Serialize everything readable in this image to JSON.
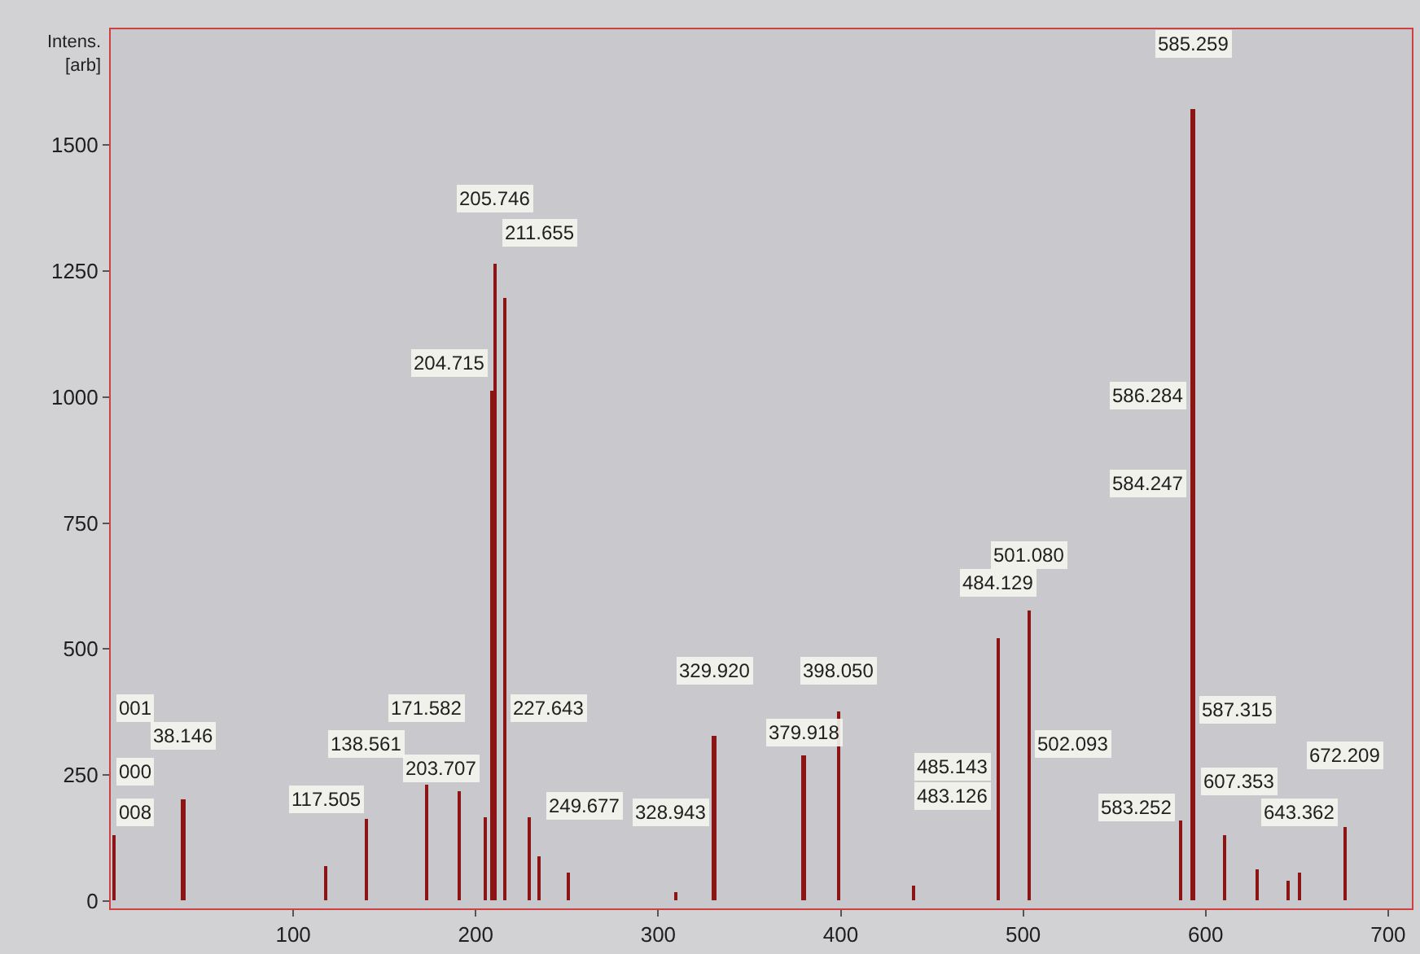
{
  "chart_data": {
    "type": "bar",
    "ylabel": "Intens.\n[arb]",
    "color": "#8b1414",
    "x": [
      2,
      40,
      118,
      140,
      173,
      191,
      205,
      209,
      211,
      216,
      229,
      235,
      251,
      310,
      331,
      380,
      399,
      440,
      486,
      503,
      586,
      593,
      610,
      628,
      645,
      651,
      676
    ],
    "values": [
      130,
      203,
      68,
      164,
      232,
      219,
      167,
      1014,
      1265,
      1198,
      167,
      90,
      55,
      16,
      328,
      290,
      377,
      30,
      522,
      576,
      158,
      1571,
      129,
      61,
      39,
      55,
      148
    ],
    "xlim": [
      0,
      713
    ],
    "xticks": [
      100,
      200,
      300,
      400,
      500,
      600,
      700
    ],
    "ylim": [
      -15,
      1730
    ],
    "yticks": [
      0,
      250,
      500,
      750,
      1000,
      1250,
      1500
    ],
    "grid": false,
    "annotations": [
      "001",
      "000",
      "008",
      "38.146",
      "117.505",
      "138.561",
      "171.582",
      "203.707",
      "205.746",
      "211.655",
      "204.715",
      "227.643",
      "249.677",
      "329.920",
      "328.943",
      "379.918",
      "398.050",
      "501.080",
      "484.129",
      "502.093",
      "485.143",
      "483.126",
      "585.259",
      "586.284",
      "584.247",
      "587.315",
      "583.252",
      "607.353",
      "643.362",
      "672.209"
    ]
  }
}
